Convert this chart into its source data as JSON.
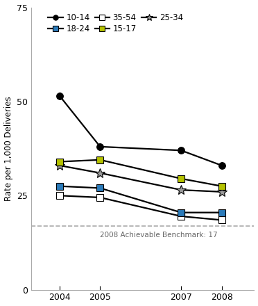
{
  "years": [
    2004,
    2005,
    2007,
    2008
  ],
  "series": {
    "10-14": {
      "values": [
        51.5,
        38.0,
        37.0,
        33.0
      ],
      "color": "#000000",
      "marker": "o",
      "marker_color": "#000000",
      "linewidth": 1.6,
      "markersize": 7
    },
    "15-17": {
      "values": [
        34.0,
        34.5,
        29.5,
        27.5
      ],
      "color": "#000000",
      "marker": "s",
      "marker_color": "#b5c200",
      "linewidth": 1.6,
      "markersize": 7
    },
    "18-24": {
      "values": [
        27.5,
        27.0,
        20.5,
        20.5
      ],
      "color": "#000000",
      "marker": "s",
      "marker_color": "#2b7bba",
      "linewidth": 1.6,
      "markersize": 7
    },
    "25-34": {
      "values": [
        33.0,
        31.0,
        26.5,
        26.0
      ],
      "color": "#000000",
      "marker": "*",
      "marker_color": "#999999",
      "linewidth": 1.6,
      "markersize": 10
    },
    "35-54": {
      "values": [
        25.0,
        24.5,
        19.5,
        18.5
      ],
      "color": "#000000",
      "marker": "s",
      "marker_color": "#ffffff",
      "linewidth": 1.6,
      "markersize": 7
    }
  },
  "benchmark": 17,
  "benchmark_label": "2008 Achievable Benchmark: 17",
  "xlim": [
    2003.3,
    2008.8
  ],
  "ylim": [
    0,
    75
  ],
  "yticks": [
    0,
    25,
    50,
    75
  ],
  "xticks": [
    2004,
    2005,
    2007,
    2008
  ],
  "ylabel": "Rate per 1,000 Deliveries",
  "background_color": "#ffffff",
  "legend_order": [
    "10-14",
    "18-24",
    "35-54",
    "15-17",
    "25-34"
  ]
}
